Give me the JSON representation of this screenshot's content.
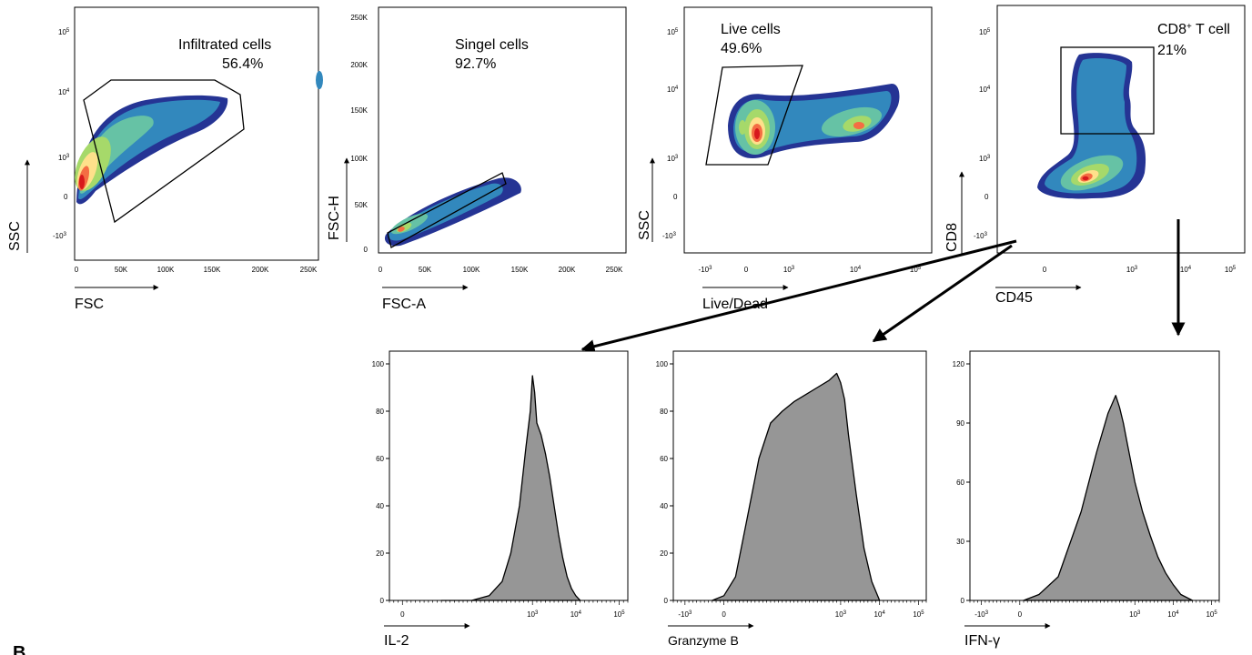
{
  "figure": {
    "panel_letter": "B"
  },
  "chart_data": [
    {
      "type": "scatter",
      "title": "",
      "xlabel": "FSC",
      "ylabel": "SSC",
      "x_scale": "linear",
      "y_scale": "log",
      "x_ticks": [
        "0",
        "50K",
        "100K",
        "150K",
        "200K",
        "250K"
      ],
      "y_ticks": [
        "10^5",
        "10^4",
        "10^3",
        "0",
        "-10^3"
      ],
      "gate": {
        "label": "Infiltrated cells",
        "percent": "56.4%"
      }
    },
    {
      "type": "scatter",
      "title": "",
      "xlabel": "FSC-A",
      "ylabel": "FSC-H",
      "x_scale": "linear",
      "y_scale": "linear",
      "x_ticks": [
        "0",
        "50K",
        "100K",
        "150K",
        "200K",
        "250K"
      ],
      "y_ticks": [
        "250K",
        "200K",
        "150K",
        "100K",
        "50K",
        "0"
      ],
      "gate": {
        "label": "Singel cells",
        "percent": "92.7%"
      }
    },
    {
      "type": "scatter",
      "title": "",
      "xlabel": "Live/Dead",
      "ylabel": "SSC",
      "x_scale": "log",
      "y_scale": "log",
      "x_ticks": [
        "-10^3",
        "0",
        "10^3",
        "10^4",
        "10^5"
      ],
      "y_ticks": [
        "10^5",
        "10^4",
        "10^3",
        "0",
        "-10^3"
      ],
      "gate": {
        "label": "Live cells",
        "percent": "49.6%"
      }
    },
    {
      "type": "scatter",
      "title": "",
      "xlabel": "CD45",
      "ylabel": "CD8",
      "x_scale": "log",
      "y_scale": "log",
      "x_ticks": [
        "0",
        "10^3",
        "10^4",
        "10^5"
      ],
      "y_ticks": [
        "10^5",
        "10^4",
        "10^3",
        "0",
        "-10^3"
      ],
      "gate": {
        "label": "CD8",
        "label_sup": "+",
        "label_rest": " T cell",
        "percent": "21%"
      }
    },
    {
      "type": "area",
      "title": "",
      "xlabel": "IL-2",
      "ylabel": "",
      "x_scale": "log",
      "x_range": [
        -0.3,
        5.2
      ],
      "ylim": [
        0,
        100
      ],
      "x_ticks": [
        "0",
        "10^3",
        "10^4",
        "10^5"
      ],
      "y_ticks": [
        "100",
        "80",
        "60",
        "40",
        "20",
        "0"
      ],
      "x": [
        0.9,
        1.6,
        2.0,
        2.3,
        2.5,
        2.7,
        2.85,
        2.95,
        3.0,
        3.05,
        3.1,
        3.2,
        3.3,
        3.4,
        3.5,
        3.6,
        3.7,
        3.8,
        3.9,
        4.0,
        4.1
      ],
      "y": [
        0,
        0,
        2,
        8,
        20,
        40,
        65,
        80,
        95,
        88,
        75,
        70,
        62,
        52,
        40,
        28,
        18,
        10,
        5,
        2,
        0
      ],
      "fill": "#969696"
    },
    {
      "type": "area",
      "title": "",
      "xlabel": "Granzyme B",
      "ylabel": "",
      "x_scale": "log",
      "x_range": [
        -1.3,
        5.2
      ],
      "ylim": [
        0,
        100
      ],
      "x_ticks": [
        "-10^3",
        "0",
        "10^3",
        "10^4",
        "10^5"
      ],
      "y_ticks": [
        "100",
        "80",
        "60",
        "40",
        "20",
        "0"
      ],
      "x": [
        -0.3,
        0.0,
        0.3,
        0.6,
        0.9,
        1.2,
        1.5,
        1.8,
        2.1,
        2.4,
        2.7,
        2.9,
        3.0,
        3.1,
        3.2,
        3.4,
        3.6,
        3.8,
        4.0
      ],
      "y": [
        0,
        2,
        10,
        35,
        60,
        75,
        80,
        84,
        87,
        90,
        93,
        96,
        92,
        85,
        70,
        45,
        22,
        8,
        0
      ],
      "fill": "#969696"
    },
    {
      "type": "area",
      "title": "",
      "xlabel": "IFN-γ",
      "ylabel": "",
      "x_scale": "log",
      "x_range": [
        -1.3,
        5.2
      ],
      "ylim": [
        0,
        120
      ],
      "x_ticks": [
        "-10^3",
        "0",
        "10^3",
        "10^4",
        "10^5"
      ],
      "y_ticks": [
        "120",
        "90",
        "60",
        "30",
        "0"
      ],
      "x": [
        0.1,
        0.5,
        1.0,
        1.6,
        2.0,
        2.3,
        2.5,
        2.6,
        2.7,
        2.8,
        2.9,
        3.0,
        3.2,
        3.4,
        3.6,
        3.8,
        4.0,
        4.2,
        4.5
      ],
      "y": [
        0,
        3,
        12,
        45,
        75,
        95,
        104,
        98,
        90,
        80,
        70,
        60,
        45,
        33,
        22,
        14,
        8,
        3,
        0
      ],
      "fill": "#969696"
    }
  ]
}
